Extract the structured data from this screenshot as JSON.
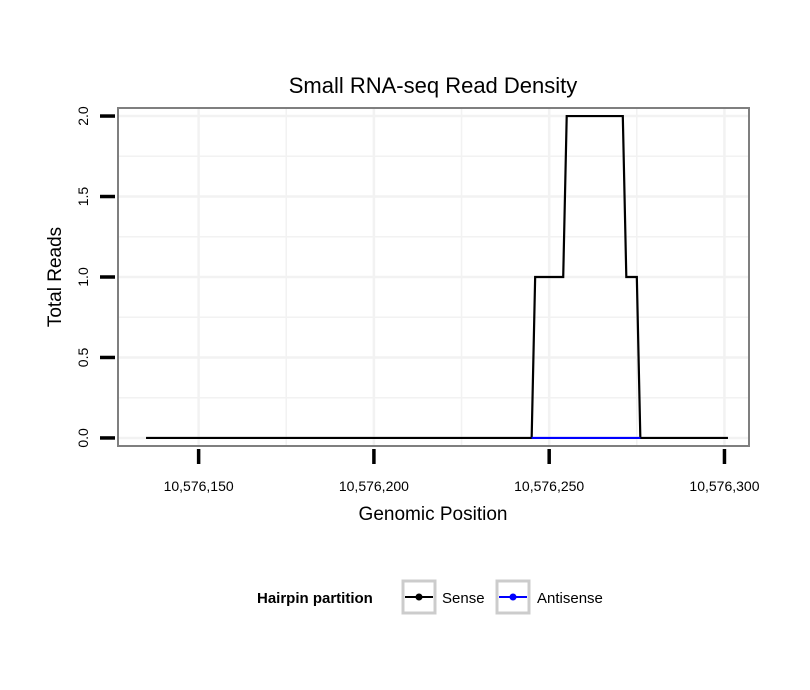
{
  "chart_data": {
    "type": "line",
    "title": "Small RNA-seq Read Density",
    "xlabel": "Genomic Position",
    "ylabel": "Total Reads",
    "xlim": [
      10576127,
      10576307
    ],
    "ylim": [
      -0.05,
      2.05
    ],
    "grid": true,
    "x_ticks": [
      10576150,
      10576200,
      10576250,
      10576300
    ],
    "x_tick_labels": [
      "10,576,150",
      "10,576,200",
      "10,576,250",
      "10,576,300"
    ],
    "y_ticks": [
      0.0,
      0.5,
      1.0,
      1.5,
      2.0
    ],
    "y_tick_labels": [
      "0.0",
      "0.5",
      "1.0",
      "1.5",
      "2.0"
    ],
    "legend": {
      "title": "Hairpin partition",
      "position": "bottom",
      "entries": [
        "Sense",
        "Antisense"
      ]
    },
    "series": [
      {
        "name": "Sense",
        "color": "#000000",
        "points": [
          [
            10576135,
            0
          ],
          [
            10576245,
            0
          ],
          [
            10576246,
            1
          ],
          [
            10576254,
            1
          ],
          [
            10576255,
            2
          ],
          [
            10576271,
            2
          ],
          [
            10576272,
            1
          ],
          [
            10576275,
            1
          ],
          [
            10576276,
            0
          ],
          [
            10576301,
            0
          ]
        ]
      },
      {
        "name": "Antisense",
        "color": "#0000ff",
        "points": [
          [
            10576245,
            0
          ],
          [
            10576276,
            0
          ]
        ]
      }
    ]
  }
}
